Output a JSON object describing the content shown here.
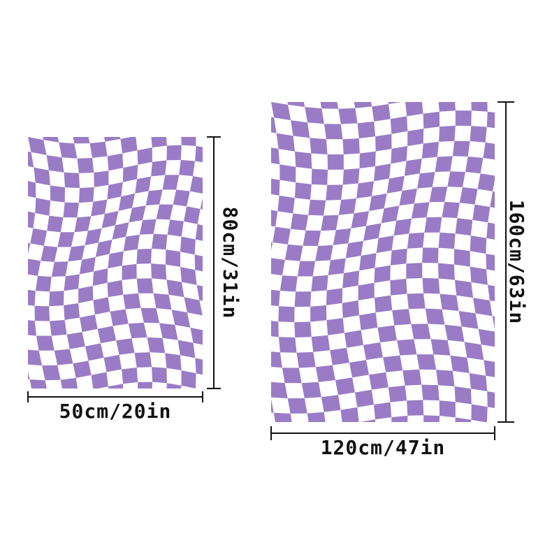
{
  "colors": {
    "check": "#9a7cc6",
    "background": "#ffffff",
    "line": "#111111"
  },
  "small_blanket": {
    "width_label": "50cm/20in",
    "height_label": "80cm/31in",
    "columns": 12,
    "rows": 17
  },
  "large_blanket": {
    "width_label": "120cm/47in",
    "height_label": "160cm/63in",
    "columns": 14,
    "rows": 21
  }
}
